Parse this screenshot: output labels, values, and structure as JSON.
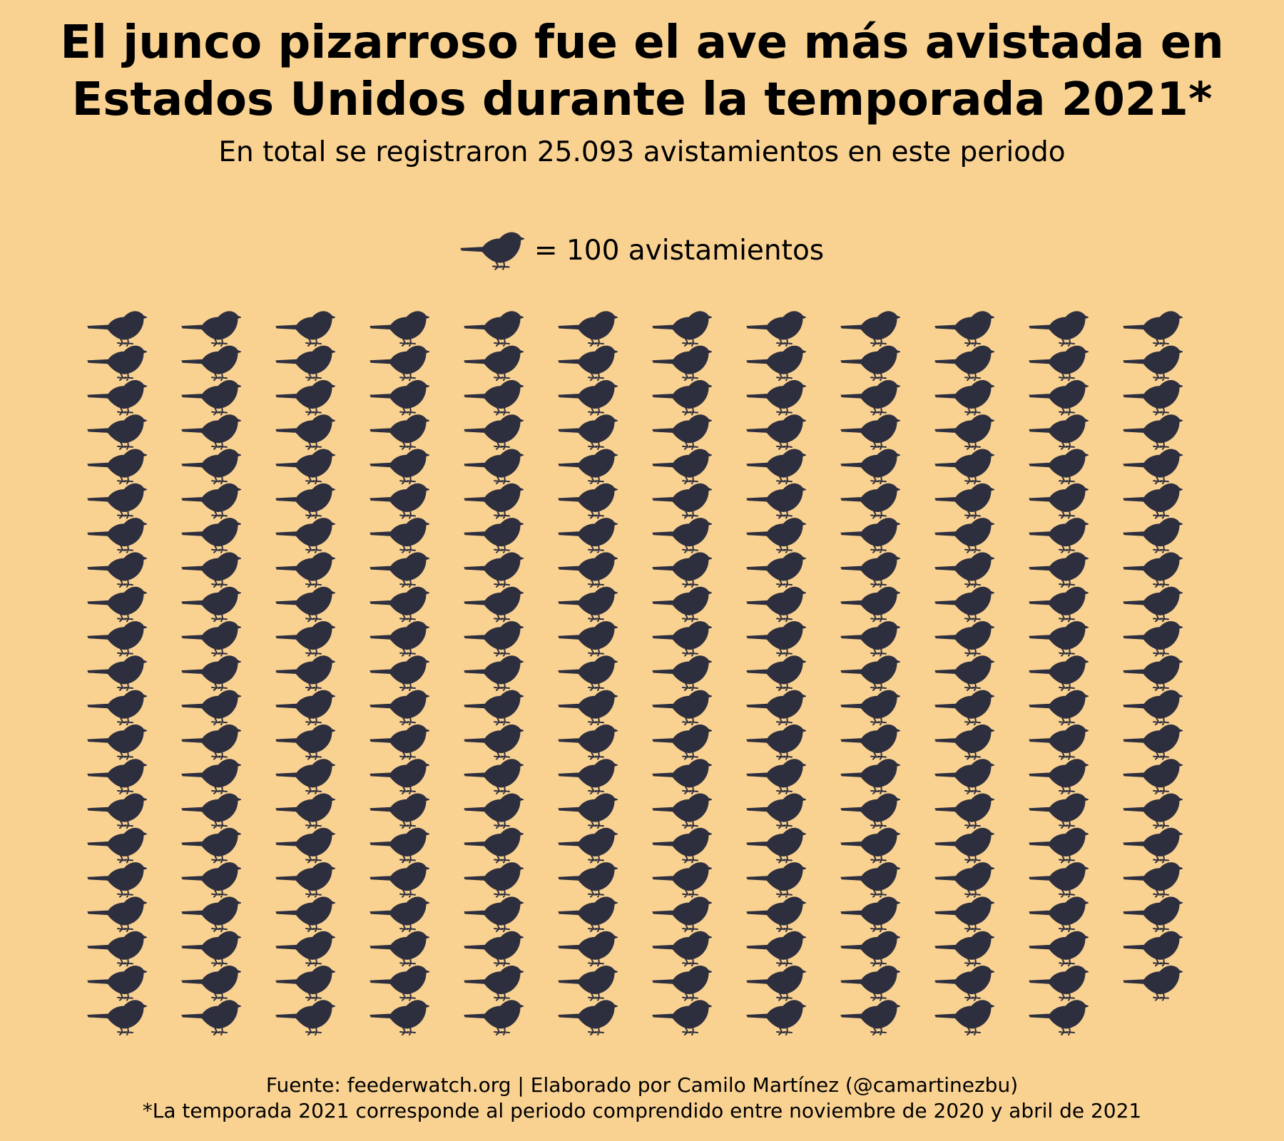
{
  "title": {
    "line1": "El junco pizarroso fue el ave más avistada en",
    "line2": "Estados Unidos durante la temporada 2021*"
  },
  "subtitle": "En total se registraron 25.093 avistamientos en este periodo",
  "legend": {
    "icon": "bird-icon",
    "label": "= 100 avistamientos"
  },
  "colors": {
    "background": "#f9d292",
    "bird": "#2e2f3e",
    "text": "#000000"
  },
  "chart_data": {
    "type": "pictogram",
    "total": 25093,
    "unit_value": 100,
    "unit_label": "avistamientos",
    "columns": 12,
    "icons_per_column": [
      21,
      21,
      21,
      21,
      21,
      21,
      21,
      21,
      21,
      21,
      21,
      20
    ],
    "icon_count": 251
  },
  "footer": {
    "source": "Fuente: feederwatch.org | Elaborado por Camilo Martínez (@camartinezbu)",
    "note": "*La temporada 2021 corresponde al periodo comprendido entre noviembre de 2020 y abril de 2021"
  }
}
